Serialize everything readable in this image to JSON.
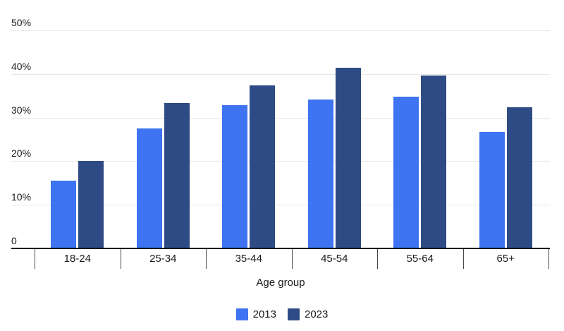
{
  "chart_data": {
    "type": "bar",
    "title": "",
    "categories": [
      "18-24",
      "25-34",
      "35-44",
      "45-54",
      "55-64",
      "65+"
    ],
    "series": [
      {
        "name": "2013",
        "color": "#3e73f1",
        "values": [
          15.5,
          27.5,
          32.8,
          34.2,
          34.8,
          26.7
        ]
      },
      {
        "name": "2023",
        "color": "#2f4b85",
        "values": [
          20.0,
          33.4,
          37.4,
          41.4,
          39.7,
          32.3
        ]
      }
    ],
    "xlabel": "Age group",
    "ylabel": "",
    "ylim": [
      0,
      50
    ],
    "yticks": [
      0,
      10,
      20,
      30,
      40,
      50
    ],
    "ytick_labels": [
      "0",
      "10%",
      "20%",
      "30%",
      "40%",
      "50%"
    ],
    "grid": true,
    "legend_position": "bottom",
    "colors": {
      "axis_line": "#000000",
      "gridline": "#e7e7e7",
      "tick": "#4a4a4a",
      "text": "#1a1a1a",
      "background": "#ffffff"
    }
  }
}
